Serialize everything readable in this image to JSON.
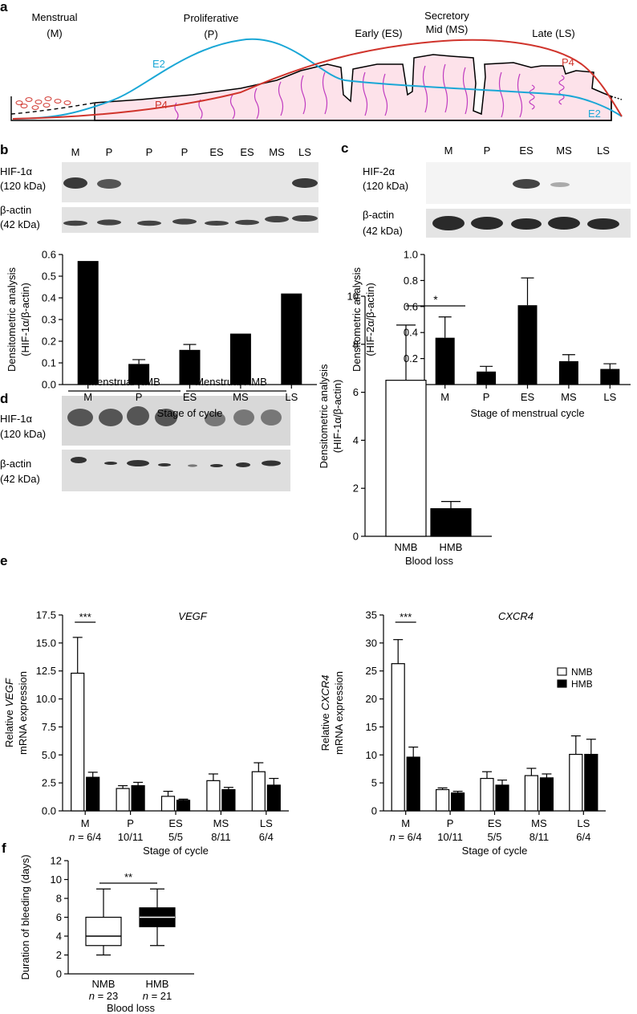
{
  "panels": {
    "a": {
      "label": "a",
      "phases": [
        {
          "line1": "Menstrual",
          "line2": "(M)"
        },
        {
          "line1": "Proliferative",
          "line2": "(P)"
        },
        {
          "line1": "Early (ES)",
          "line2": ""
        },
        {
          "line1": "Secretory",
          "line2": "Mid (MS)"
        },
        {
          "line1": "Late (LS)",
          "line2": ""
        }
      ],
      "hormones": {
        "e2": "E2",
        "p4": "P4"
      },
      "colors": {
        "e2": "#1aa7d6",
        "p4": "#d0342c",
        "tissue_fill": "#fde2ea",
        "gland": "#c03cc0"
      }
    },
    "b": {
      "label": "b",
      "blot_lanes": [
        "M",
        "P",
        "P",
        "P",
        "ES",
        "ES",
        "MS",
        "LS"
      ],
      "blot_labels": {
        "target": "HIF-1α",
        "target_kda": "(120 kDa)",
        "control": "β-actin",
        "control_kda": "(42 kDa)"
      }
    },
    "c": {
      "label": "c",
      "blot_lanes": [
        "M",
        "P",
        "ES",
        "MS",
        "LS"
      ],
      "blot_labels": {
        "target": "HIF-2α",
        "target_kda": "(120 kDa)",
        "control": "β-actin",
        "control_kda": "(42 kDa)"
      }
    },
    "d": {
      "label": "d",
      "blot_groups": [
        "Menstrual NMB",
        "Menstrual HMB"
      ],
      "blot_labels": {
        "target": "HIF-1α",
        "target_kda": "(120 kDa)",
        "control": "β-actin",
        "control_kda": "(42 kDa)"
      }
    },
    "e": {
      "label": "e"
    },
    "f": {
      "label": "f"
    }
  },
  "chart_data": [
    {
      "id": "b-bar",
      "type": "bar",
      "categories": [
        "M",
        "P",
        "ES",
        "MS",
        "LS"
      ],
      "values": [
        0.57,
        0.095,
        0.16,
        0.235,
        0.42
      ],
      "errors": [
        0,
        0.02,
        0.025,
        0,
        0
      ],
      "ylim": [
        0,
        0.6
      ],
      "yticks": [
        "0.0",
        "0.1",
        "0.2",
        "0.3",
        "0.4",
        "0.5",
        "0.6"
      ],
      "ylabel_line1": "Densitometric analysis",
      "ylabel_line2": "(HIF-1α/β-actin)",
      "xlabel": "Stage of cycle",
      "bar_color": "#000000"
    },
    {
      "id": "c-bar",
      "type": "bar",
      "categories": [
        "M",
        "P",
        "ES",
        "MS",
        "LS"
      ],
      "values": [
        0.36,
        0.1,
        0.61,
        0.18,
        0.12
      ],
      "errors": [
        0.16,
        0.04,
        0.21,
        0.05,
        0.04
      ],
      "ylim": [
        0,
        1.0
      ],
      "yticks": [
        "0.0",
        "0.2",
        "0.4",
        "0.6",
        "0.8",
        "1.0"
      ],
      "ylabel_line1": "Densitometric analysis",
      "ylabel_line2": "(HIF-2α/β-actin)",
      "xlabel": "Stage of menstrual cycle",
      "bar_color": "#000000"
    },
    {
      "id": "d-bar",
      "type": "bar",
      "categories": [
        "NMB",
        "HMB"
      ],
      "values": [
        6.5,
        1.15
      ],
      "errors": [
        2.3,
        0.3
      ],
      "fills": [
        "#ffffff",
        "#000000"
      ],
      "ylim": [
        0,
        10
      ],
      "yticks": [
        "0",
        "2",
        "4",
        "6",
        "8",
        "10"
      ],
      "ylabel_line1": "Densitometric analysis",
      "ylabel_line2": "(HIF-1α/β-actin)",
      "xlabel": "Blood loss",
      "significance": "*"
    },
    {
      "id": "e-vegf",
      "type": "bar",
      "title": "VEGF",
      "categories": [
        "M",
        "P",
        "ES",
        "MS",
        "LS"
      ],
      "n_labels": [
        "n = 6/4",
        "10/11",
        "5/5",
        "8/11",
        "6/4"
      ],
      "series": [
        {
          "name": "NMB",
          "values": [
            12.3,
            2.0,
            1.3,
            2.7,
            3.5
          ],
          "errors": [
            3.2,
            0.25,
            0.45,
            0.6,
            0.8
          ],
          "color": "#ffffff"
        },
        {
          "name": "HMB",
          "values": [
            3.0,
            2.25,
            0.95,
            1.9,
            2.3
          ],
          "errors": [
            0.45,
            0.3,
            0.1,
            0.2,
            0.6
          ],
          "color": "#000000"
        }
      ],
      "ylim": [
        0,
        17.5
      ],
      "yticks": [
        "0.0",
        "2.5",
        "5.0",
        "7.5",
        "10.0",
        "12.5",
        "15.0",
        "17.5"
      ],
      "ylabel_pre": "Relative ",
      "ylabel_gene": "VEGF",
      "ylabel_line2": "mRNA expression",
      "xlabel": "Stage of cycle",
      "significance": "***"
    },
    {
      "id": "e-cxcr4",
      "type": "bar",
      "title": "CXCR4",
      "categories": [
        "M",
        "P",
        "ES",
        "MS",
        "LS"
      ],
      "n_labels": [
        "n = 6/4",
        "10/11",
        "5/5",
        "8/11",
        "6/4"
      ],
      "series": [
        {
          "name": "NMB",
          "values": [
            26.3,
            3.8,
            5.8,
            6.3,
            10.1
          ],
          "errors": [
            4.3,
            0.3,
            1.2,
            1.3,
            3.3
          ],
          "color": "#ffffff"
        },
        {
          "name": "HMB",
          "values": [
            9.6,
            3.2,
            4.6,
            5.9,
            10.1
          ],
          "errors": [
            1.8,
            0.3,
            0.9,
            0.7,
            2.7
          ],
          "color": "#000000"
        }
      ],
      "ylim": [
        0,
        35
      ],
      "yticks": [
        "0",
        "5",
        "10",
        "15",
        "20",
        "25",
        "30",
        "35"
      ],
      "ylabel_pre": "Relative ",
      "ylabel_gene": "CXCR4",
      "ylabel_line2": "mRNA expression",
      "xlabel": "Stage of cycle",
      "legend": [
        "NMB",
        "HMB"
      ],
      "significance": "***"
    },
    {
      "id": "f-box",
      "type": "box",
      "categories": [
        "NMB",
        "HMB"
      ],
      "n_labels": [
        "n = 23",
        "n = 21"
      ],
      "boxes": [
        {
          "min": 2,
          "q1": 3,
          "median": 4,
          "q3": 6,
          "max": 9,
          "fill": "#ffffff"
        },
        {
          "min": 3,
          "q1": 5,
          "median": 6,
          "q3": 7,
          "max": 9,
          "fill": "#000000"
        }
      ],
      "ylim": [
        0,
        12
      ],
      "yticks": [
        "0",
        "2",
        "4",
        "6",
        "8",
        "10",
        "12"
      ],
      "ylabel": "Duration of bleeding (days)",
      "xlabel": "Blood loss",
      "significance": "**"
    }
  ]
}
